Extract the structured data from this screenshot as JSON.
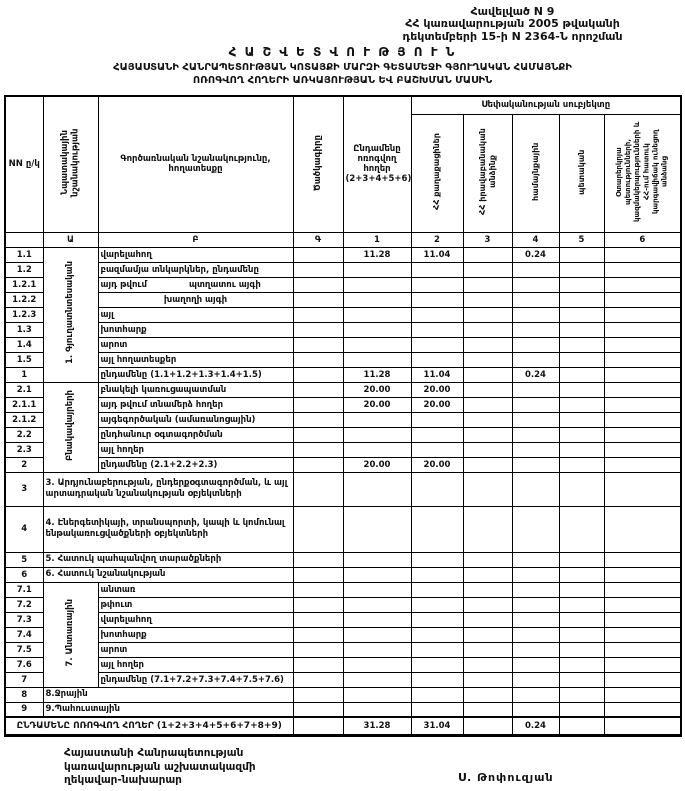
{
  "annex": {
    "line1": "Հավելված N 9",
    "line2": "ՀՀ կառավարության 2005 թվականի",
    "line3": "դեկտեմբերի 15-ի N 2364-Ն որոշման"
  },
  "title": {
    "line1": "Հ Ա Շ Վ Ե Տ Վ Ո Ւ Թ Յ Ո Ւ Ն",
    "line2": "ՀԱՅԱՍՏԱՆԻ ՀԱՆՐԱՊԵՏՈՒԹՅԱՆ ԿՈՏԱՅՔԻ ՄԱՐԶԻ ԳԵՏԱՄԵՋԻ ԳՅՈՒՂԱԿԱՆ ՀԱՄԱՅՆՔԻ",
    "line3": "ՈՌՈԳՎՈՂ ՀՈՂԵՐԻ ԱՌԿԱՅՈՒԹՅԱՆ ԵՎ ԲԱՇԽՄԱՆ ՄԱՍԻՆ"
  },
  "table": {
    "headers": {
      "nn": "NN ը/կ",
      "target": "Նպատակային նշանակության",
      "functional": "Գործառնական նշանակությունը, հողատեսքը",
      "code": "Ծածկագիրը",
      "total": "Ընդամենը ոռոգվող հողեր (2+3+4+5+6)",
      "ownership": "Սեփականության սուբյեկտը",
      "owners": [
        "ՀՀ քաղաքացիներ",
        "ՀՀ իրավաբանական անձինք",
        "համայնքային",
        "պետական",
        "Օտարերկրյա պետությունների, կազմակերպությունների և ՀՀ-ում հատուկ կարգավիճակ ունեցող անձանց"
      ]
    },
    "letters": [
      "",
      "Ա",
      "Բ",
      "Գ",
      "1",
      "2",
      "3",
      "4",
      "5",
      "6"
    ],
    "rows": [
      {
        "no": "1.1",
        "label": "վարելահող",
        "group": {
          "label": "1. Գյուղատնտեսական",
          "rows": 9
        },
        "values": [
          "11.28",
          "11.04",
          "",
          "0.24",
          "",
          ""
        ]
      },
      {
        "no": "1.2",
        "label": "բազմամյա տնկարկներ, ընդամենը"
      },
      {
        "no": "1.2.1",
        "label": "այդ թվում",
        "label2": "պտղատու այգի"
      },
      {
        "no": "1.2.2",
        "label": "խաղողի այգի",
        "align": "center"
      },
      {
        "no": "1.2.3",
        "label": "այլ"
      },
      {
        "no": "1.3",
        "label": "խոտհարք"
      },
      {
        "no": "1.4",
        "label": "արոտ"
      },
      {
        "no": "1.5",
        "label": "այլ հողատեսքեր"
      },
      {
        "no": "1",
        "label": "ընդամենը (1.1+1.2+1.3+1.4+1.5)",
        "values": [
          "11.28",
          "11.04",
          "",
          "0.24",
          "",
          ""
        ]
      },
      {
        "no": "2.1",
        "label": "բնակելի կառուցապատման",
        "group": {
          "label": "Բնակավայրերի",
          "rows": 6
        },
        "values": [
          "20.00",
          "20.00",
          "",
          "",
          "",
          ""
        ]
      },
      {
        "no": "2.1.1",
        "label": "այդ թվում տնամերձ հողեր",
        "values": [
          "20.00",
          "20.00",
          "",
          "",
          "",
          ""
        ]
      },
      {
        "no": "2.1.2",
        "label": "այգեգործական (ամառանոցային)"
      },
      {
        "no": "2.2",
        "label": "ընդհանուր օգտագործման"
      },
      {
        "no": "2.3",
        "label": "այլ հողեր"
      },
      {
        "no": "2",
        "label": "ընդամենը (2.1+2.2+2.3)",
        "values": [
          "20.00",
          "20.00",
          "",
          "",
          "",
          ""
        ]
      },
      {
        "no": "3",
        "type": "wide",
        "h": 34,
        "label": "3. Արդյունաբերության, ընդերքօգտագործման, և այլ արտադրական նշանակության օբյեկտների"
      },
      {
        "no": "4",
        "type": "wide",
        "h": 46,
        "label": "4. Էներգետիկայի, տրանսպորտի, կապի և կոմունալ ենթակառուցվածքների օբյեկտների"
      },
      {
        "no": "5",
        "type": "wide",
        "label": "5. Հատուկ պահպանվող տարածքների"
      },
      {
        "no": "6",
        "type": "wide",
        "label": "6. Հատուկ նշանակության"
      },
      {
        "no": "7.1",
        "label": "անտառ",
        "group": {
          "label": "7. Անտառային",
          "rows": 7
        }
      },
      {
        "no": "7.2",
        "label": "թփուտ"
      },
      {
        "no": "7.3",
        "label": "վարելահող"
      },
      {
        "no": "7.4",
        "label": "խոտհարք"
      },
      {
        "no": "7.5",
        "label": "արոտ"
      },
      {
        "no": "7.6",
        "label": "այլ հողեր"
      },
      {
        "no": "7",
        "label": "ընդամենը (7.1+7.2+7.3+7.4+7.5+7.6)"
      },
      {
        "no": "8",
        "type": "wide",
        "label": "8.Ջրային"
      },
      {
        "no": "9",
        "type": "wide",
        "label": "9.Պահուստային"
      },
      {
        "type": "grand",
        "h": 18,
        "label": "ԸՆԴԱՄԵՆԸ ՈՌՈԳՎՈՂ ՀՈՂԵՐ (1+2+3+4+5+6+7+8+9)",
        "values": [
          "31.28",
          "31.04",
          "",
          "0.24",
          "",
          ""
        ]
      }
    ]
  },
  "footer": {
    "office_line1": "Հայաստանի Հանրապետության",
    "office_line2": "կառավարության աշխատակազմի",
    "office_line3": "ղեկավար-նախարար",
    "signature": "Ս. Թոփուզյան"
  }
}
